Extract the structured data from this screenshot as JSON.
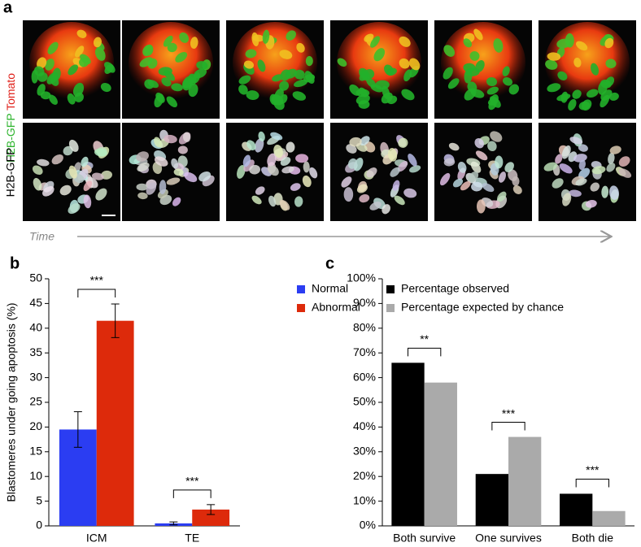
{
  "panel_a": {
    "panel_label": "a",
    "top_row_label": {
      "green": "H2B-GFP",
      "red": "Tomato"
    },
    "bottom_row_label": "H2B-GFP",
    "time_label": "Time"
  },
  "chart_data": [
    {
      "type": "bar",
      "panel_label": "b",
      "y_label": "Blastomeres under going apoptosis (%)",
      "categories": [
        "ICM",
        "TE"
      ],
      "series": [
        {
          "name": "Normal",
          "color": "#2b3df2",
          "values": [
            19.5,
            0.5
          ],
          "errors": [
            3.6,
            0.3
          ]
        },
        {
          "name": "Abnormal",
          "color": "#dd2a0b",
          "values": [
            41.5,
            3.3
          ],
          "errors": [
            3.4,
            1.0
          ]
        }
      ],
      "annotations": [
        "***",
        "***"
      ],
      "ylim": [
        0,
        50
      ],
      "yticks": [
        0,
        5,
        10,
        15,
        20,
        25,
        30,
        35,
        40,
        45,
        50
      ],
      "legend": "top-right"
    },
    {
      "type": "bar",
      "panel_label": "c",
      "categories": [
        "Both survive",
        "One survives",
        "Both die"
      ],
      "series": [
        {
          "name": "Percentage observed",
          "color": "#000000",
          "values": [
            66,
            21,
            13
          ]
        },
        {
          "name": "Percentage expected by chance",
          "color": "#aaaaaa",
          "values": [
            58,
            36,
            6
          ]
        }
      ],
      "annotations": [
        "**",
        "***",
        "***"
      ],
      "ylim": [
        0,
        100
      ],
      "yticks": [
        {
          "value": 0,
          "label": "0%"
        },
        {
          "value": 10,
          "label": "10%"
        },
        {
          "value": 20,
          "label": "20%"
        },
        {
          "value": 30,
          "label": "30%"
        },
        {
          "value": 40,
          "label": "40%"
        },
        {
          "value": 50,
          "label": "50%"
        },
        {
          "value": 60,
          "label": "60%"
        },
        {
          "value": 70,
          "label": "70%"
        },
        {
          "value": 80,
          "label": "80%"
        },
        {
          "value": 90,
          "label": "90%"
        },
        {
          "value": 100,
          "label": "100%"
        }
      ],
      "legend": "top-left"
    }
  ]
}
